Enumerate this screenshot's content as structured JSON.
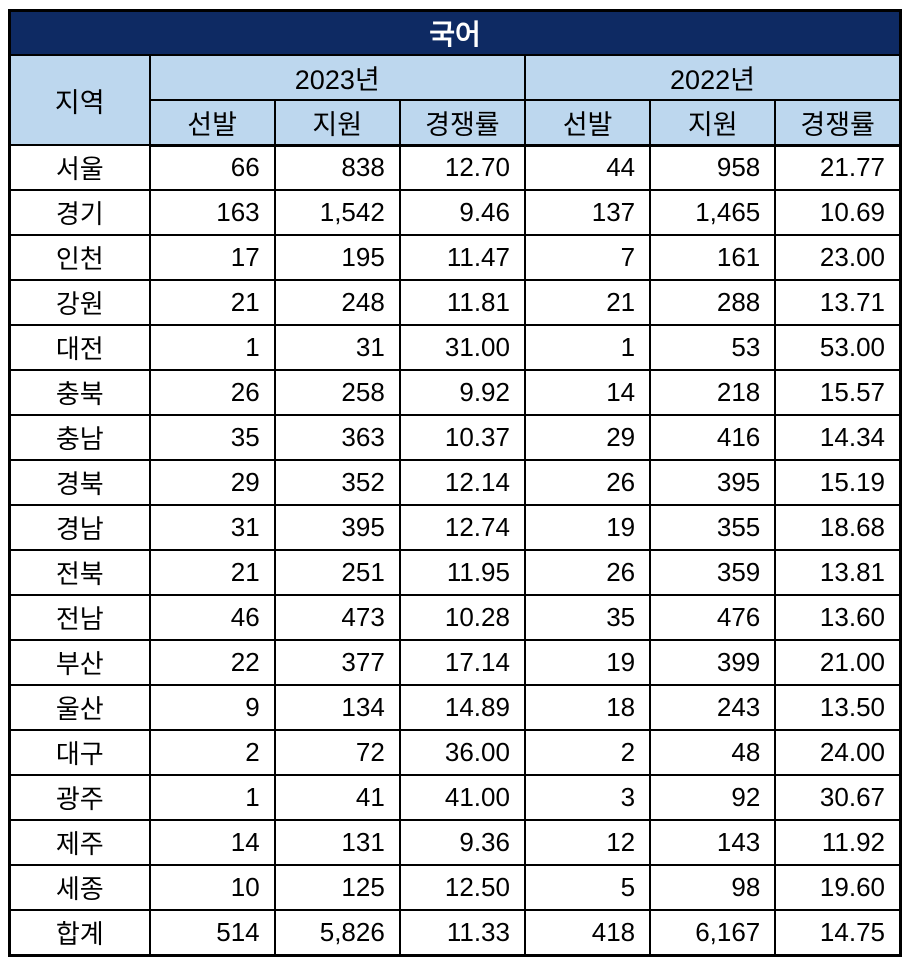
{
  "chart_data": {
    "type": "table",
    "title": "국어",
    "region_header": "지역",
    "year_groups": [
      {
        "label": "2023년",
        "columns": [
          "선발",
          "지원",
          "경쟁률"
        ]
      },
      {
        "label": "2022년",
        "columns": [
          "선발",
          "지원",
          "경쟁률"
        ]
      }
    ],
    "rows": [
      {
        "region": "서울",
        "values": [
          "66",
          "838",
          "12.70",
          "44",
          "958",
          "21.77"
        ]
      },
      {
        "region": "경기",
        "values": [
          "163",
          "1,542",
          "9.46",
          "137",
          "1,465",
          "10.69"
        ]
      },
      {
        "region": "인천",
        "values": [
          "17",
          "195",
          "11.47",
          "7",
          "161",
          "23.00"
        ]
      },
      {
        "region": "강원",
        "values": [
          "21",
          "248",
          "11.81",
          "21",
          "288",
          "13.71"
        ]
      },
      {
        "region": "대전",
        "values": [
          "1",
          "31",
          "31.00",
          "1",
          "53",
          "53.00"
        ]
      },
      {
        "region": "충북",
        "values": [
          "26",
          "258",
          "9.92",
          "14",
          "218",
          "15.57"
        ]
      },
      {
        "region": "충남",
        "values": [
          "35",
          "363",
          "10.37",
          "29",
          "416",
          "14.34"
        ]
      },
      {
        "region": "경북",
        "values": [
          "29",
          "352",
          "12.14",
          "26",
          "395",
          "15.19"
        ]
      },
      {
        "region": "경남",
        "values": [
          "31",
          "395",
          "12.74",
          "19",
          "355",
          "18.68"
        ]
      },
      {
        "region": "전북",
        "values": [
          "21",
          "251",
          "11.95",
          "26",
          "359",
          "13.81"
        ]
      },
      {
        "region": "전남",
        "values": [
          "46",
          "473",
          "10.28",
          "35",
          "476",
          "13.60"
        ]
      },
      {
        "region": "부산",
        "values": [
          "22",
          "377",
          "17.14",
          "19",
          "399",
          "21.00"
        ]
      },
      {
        "region": "울산",
        "values": [
          "9",
          "134",
          "14.89",
          "18",
          "243",
          "13.50"
        ]
      },
      {
        "region": "대구",
        "values": [
          "2",
          "72",
          "36.00",
          "2",
          "48",
          "24.00"
        ]
      },
      {
        "region": "광주",
        "values": [
          "1",
          "41",
          "41.00",
          "3",
          "92",
          "30.67"
        ]
      },
      {
        "region": "제주",
        "values": [
          "14",
          "131",
          "9.36",
          "12",
          "143",
          "11.92"
        ]
      },
      {
        "region": "세종",
        "values": [
          "10",
          "125",
          "12.50",
          "5",
          "98",
          "19.60"
        ]
      },
      {
        "region": "합계",
        "values": [
          "514",
          "5,826",
          "11.33",
          "418",
          "6,167",
          "14.75"
        ]
      }
    ]
  },
  "colors": {
    "title_bg": "#0e2a63",
    "title_text": "#ffffff",
    "header_bg": "#bdd7ee",
    "border_color": "#000000",
    "body_bg": "#ffffff",
    "text_color": "#000000"
  }
}
